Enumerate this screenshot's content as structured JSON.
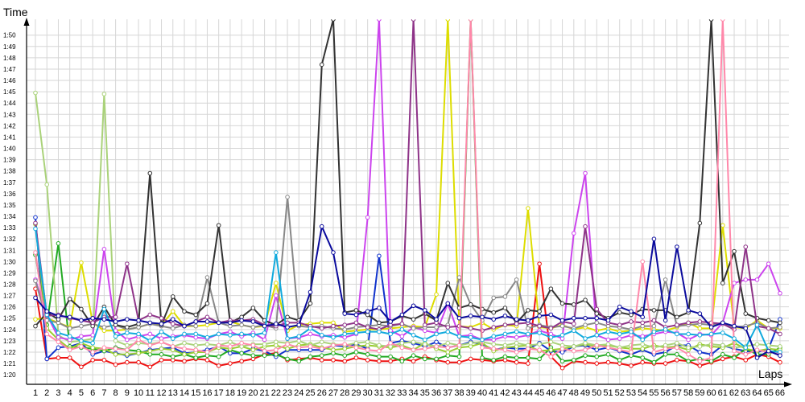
{
  "chart_data": {
    "type": "line",
    "xlabel": "Laps",
    "ylabel": "Time",
    "grid": true,
    "legend": "none",
    "x_ticks": [
      "1",
      "2",
      "3",
      "4",
      "5",
      "6",
      "7",
      "8",
      "9",
      "10",
      "11",
      "12",
      "13",
      "14",
      "15",
      "16",
      "17",
      "18",
      "19",
      "20",
      "21",
      "22",
      "23",
      "24",
      "25",
      "26",
      "27",
      "28",
      "29",
      "30",
      "31",
      "32",
      "33",
      "34",
      "35",
      "36",
      "37",
      "38",
      "39",
      "40",
      "41",
      "42",
      "43",
      "44",
      "45",
      "46",
      "47",
      "48",
      "49",
      "50",
      "51",
      "52",
      "53",
      "54",
      "55",
      "56",
      "57",
      "58",
      "59",
      "60",
      "61",
      "62",
      "63",
      "64",
      "65",
      "66"
    ],
    "y_ticks": [
      "1:20",
      "1:21",
      "1:22",
      "1:23",
      "1:24",
      "1:25",
      "1:26",
      "1:27",
      "1:28",
      "1:29",
      "1:30",
      "1:31",
      "1:32",
      "1:33",
      "1:34",
      "1:35",
      "1:36",
      "1:37",
      "1:38",
      "1:39",
      "1:40",
      "1:41",
      "1:42",
      "1:43",
      "1:44",
      "1:45",
      "1:46",
      "1:47",
      "1:48",
      "1:49",
      "1:50"
    ],
    "ylim": [
      79.3,
      111.4
    ],
    "xlim": [
      1,
      66
    ],
    "series": [
      {
        "color": "#ee1111",
        "values": [
          87.6,
          81.4,
          81.5,
          81.5,
          80.7,
          81.3,
          81.3,
          80.9,
          81.1,
          81.1,
          80.7,
          81.3,
          81.3,
          81.2,
          81.4,
          81.3,
          80.8,
          81.0,
          81.2,
          81.4,
          81.8,
          81.9,
          81.3,
          81.4,
          81.5,
          81.3,
          81.3,
          81.2,
          81.5,
          81.3,
          81.2,
          81.2,
          81.4,
          81.2,
          81.6,
          81.3,
          81.1,
          81.1,
          81.4,
          81.3,
          81.2,
          81.3,
          81.1,
          81.0,
          89.8,
          81.6,
          80.6,
          81.2,
          81.1,
          81.0,
          81.1,
          81.0,
          80.8,
          81.1,
          81.0,
          81.0,
          81.3,
          81.2,
          80.8,
          81.1,
          81.4,
          81.6,
          81.3,
          81.8,
          81.6,
          81.1
        ]
      },
      {
        "color": "#1133cc",
        "values": [
          93.9,
          81.4,
          82.4,
          82.5,
          82.8,
          81.8,
          82.1,
          81.9,
          81.7,
          81.9,
          82.2,
          82.3,
          82.4,
          81.9,
          82.0,
          82.2,
          82.5,
          81.9,
          81.9,
          82.3,
          82.1,
          81.6,
          82.2,
          82.2,
          82.2,
          82.2,
          82.6,
          82.5,
          82.7,
          82.3,
          90.5,
          82.8,
          83.0,
          82.8,
          82.5,
          82.9,
          82.4,
          82.6,
          82.9,
          82.7,
          82.2,
          82.4,
          82.3,
          82.3,
          82.8,
          82.1,
          82.0,
          82.5,
          82.6,
          82.2,
          82.4,
          82.1,
          81.8,
          82.2,
          81.8,
          82.0,
          82.6,
          82.6,
          82.0,
          81.8,
          82.6,
          82.3,
          82.1,
          82.0,
          82.3,
          84.9
        ]
      },
      {
        "color": "#22aa22",
        "values": [
          90.6,
          84.4,
          91.6,
          82.5,
          82.4,
          82.3,
          82.1,
          82.4,
          82.2,
          82.1,
          81.8,
          81.8,
          81.6,
          81.8,
          81.5,
          81.7,
          81.6,
          82.2,
          81.9,
          81.7,
          81.7,
          81.8,
          81.4,
          81.2,
          81.6,
          81.7,
          81.9,
          81.7,
          82.0,
          81.8,
          81.6,
          81.6,
          81.2,
          81.7,
          81.4,
          81.4,
          81.7,
          81.6,
          111.4,
          81.5,
          81.3,
          81.6,
          81.5,
          81.5,
          81.4,
          82.4,
          81.2,
          81.3,
          81.7,
          81.6,
          81.8,
          81.3,
          81.7,
          81.5,
          81.1,
          81.8,
          81.8,
          81.2,
          81.4,
          81.2,
          81.8,
          81.5,
          82.3,
          81.8,
          81.8,
          82.4
        ]
      },
      {
        "color": "#9acd32",
        "values": [
          93.3,
          84.1,
          83.1,
          82.3,
          82.8,
          82.4,
          82.3,
          81.8,
          81.8,
          81.9,
          82.1,
          82.3,
          82.2,
          81.8,
          82.0,
          82.0,
          82.4,
          82.3,
          82.5,
          82.2,
          82.5,
          82.6,
          82.3,
          82.6,
          82.7,
          82.4,
          82.2,
          82.3,
          82.5,
          82.6,
          82.5,
          82.4,
          82.6,
          82.2,
          82.8,
          82.3,
          82.0,
          82.4,
          82.5,
          82.8,
          82.1,
          82.4,
          82.5,
          82.6,
          82.1,
          82.2,
          82.3,
          82.5,
          82.7,
          82.5,
          82.6,
          82.4,
          82.3,
          82.3,
          82.6,
          82.4,
          82.5,
          82.2,
          82.7,
          82.5,
          82.4,
          82.8,
          82.3,
          82.1,
          82.3,
          82.2
        ]
      },
      {
        "color": "#aad27a",
        "values": [
          104.9,
          96.8,
          83.5,
          82.9,
          83.0,
          83.2,
          104.8,
          83.0,
          82.6,
          82.8,
          82.7,
          82.9,
          82.5,
          82.8,
          82.6,
          82.7,
          82.6,
          82.9,
          82.5,
          82.7,
          82.7,
          82.9,
          82.8,
          83.0,
          82.6,
          82.9,
          82.7,
          82.6,
          82.8,
          82.9,
          82.6,
          82.5,
          82.8,
          82.9,
          82.7,
          82.5,
          82.8,
          82.6,
          82.8,
          82.9,
          82.7,
          82.6,
          82.8,
          82.6,
          82.7,
          82.9,
          82.6,
          82.5,
          82.8,
          82.6,
          82.7,
          82.4,
          82.6,
          82.7,
          82.4,
          82.6,
          82.8,
          82.4,
          82.5,
          82.7,
          82.6,
          82.4,
          82.5,
          82.7,
          82.6,
          82.5
        ]
      },
      {
        "color": "#dddd00",
        "values": [
          84.9,
          85.0,
          84.6,
          84.2,
          89.9,
          84.6,
          83.9,
          83.9,
          84.0,
          84.2,
          84.5,
          84.4,
          85.6,
          84.3,
          84.3,
          84.4,
          84.6,
          84.7,
          84.4,
          84.2,
          84.3,
          88.1,
          83.9,
          84.4,
          84.5,
          84.6,
          84.6,
          83.8,
          83.9,
          84.0,
          84.0,
          84.1,
          84.2,
          84.3,
          84.2,
          87.1,
          111.4,
          84.3,
          84.2,
          84.6,
          84.0,
          84.4,
          84.3,
          94.7,
          84.2,
          84.1,
          84.4,
          84.0,
          84.2,
          83.9,
          84.1,
          83.8,
          83.9,
          84.1,
          84.0,
          83.9,
          84.2,
          84.6,
          84.1,
          84.1,
          93.2,
          84.2,
          84.1,
          84.8,
          84.1,
          84.1
        ]
      },
      {
        "color": "#cc44ee",
        "values": [
          88.4,
          85.3,
          83.3,
          83.1,
          83.4,
          83.5,
          91.1,
          83.9,
          83.1,
          83.4,
          83.6,
          83.2,
          83.4,
          83.5,
          83.3,
          83.2,
          83.6,
          83.8,
          83.4,
          83.7,
          83.1,
          87.0,
          83.2,
          83.3,
          83.6,
          83.4,
          83.5,
          83.3,
          83.6,
          93.9,
          111.4,
          83.9,
          83.4,
          84.2,
          83.9,
          83.7,
          86.3,
          83.4,
          83.5,
          83.1,
          83.1,
          83.4,
          83.3,
          83.5,
          83.9,
          83.6,
          83.2,
          92.5,
          97.8,
          83.5,
          83.1,
          83.2,
          83.5,
          83.4,
          83.6,
          83.8,
          83.7,
          83.1,
          83.6,
          83.5,
          84.6,
          88.1,
          88.4,
          88.4,
          89.8,
          87.2
        ]
      },
      {
        "color": "#888888",
        "values": [
          88.3,
          84.8,
          84.6,
          84.1,
          84.3,
          84.5,
          84.2,
          84.4,
          84.0,
          84.2,
          84.5,
          84.3,
          84.1,
          84.4,
          84.3,
          88.6,
          84.6,
          84.3,
          84.4,
          84.2,
          84.4,
          84.1,
          95.7,
          84.3,
          84.2,
          84.3,
          84.1,
          84.0,
          84.2,
          84.3,
          84.4,
          84.3,
          84.5,
          84.1,
          84.2,
          84.2,
          84.4,
          88.6,
          86.2,
          84.8,
          86.8,
          86.9,
          88.4,
          84.1,
          84.4,
          84.2,
          84.3,
          84.1,
          84.4,
          84.6,
          84.3,
          84.2,
          84.0,
          84.3,
          84.3,
          88.4,
          84.3,
          84.4,
          84.5,
          84.4,
          84.6,
          84.2,
          84.3,
          84.6,
          84.1,
          84.2
        ]
      },
      {
        "color": "#333333",
        "values": [
          84.3,
          85.5,
          84.9,
          86.7,
          85.8,
          84.3,
          86.0,
          84.4,
          84.2,
          84.5,
          97.8,
          84.4,
          86.9,
          85.6,
          85.3,
          86.3,
          93.2,
          84.6,
          85.1,
          85.9,
          84.8,
          84.4,
          85.1,
          84.8,
          86.3,
          107.4,
          111.4,
          85.5,
          85.7,
          85.3,
          84.6,
          84.7,
          85.2,
          84.9,
          85.4,
          84.8,
          88.1,
          85.9,
          86.2,
          85.8,
          85.5,
          85.9,
          84.6,
          85.7,
          85.6,
          87.6,
          86.3,
          86.2,
          86.6,
          85.4,
          85.0,
          85.5,
          85.3,
          85.8,
          85.7,
          85.7,
          85.1,
          85.5,
          93.4,
          111.4,
          88.1,
          90.9,
          85.4,
          85.0,
          84.8,
          84.6
        ]
      },
      {
        "color": "#8e3388",
        "values": [
          93.4,
          85.2,
          85.3,
          85.0,
          84.8,
          84.6,
          85.1,
          85.1,
          89.8,
          84.8,
          85.3,
          85.0,
          84.5,
          84.3,
          84.7,
          85.1,
          84.6,
          84.8,
          84.8,
          84.9,
          84.4,
          84.3,
          84.6,
          84.6,
          84.3,
          84.1,
          84.3,
          84.4,
          84.6,
          84.2,
          84.0,
          84.4,
          84.5,
          111.4,
          84.4,
          84.6,
          84.2,
          84.3,
          84.1,
          83.9,
          84.2,
          84.4,
          84.5,
          84.6,
          84.3,
          84.1,
          84.7,
          84.5,
          93.1,
          85.8,
          84.6,
          84.4,
          84.7,
          84.6,
          84.8,
          84.2,
          84.4,
          84.6,
          84.7,
          84.6,
          84.5,
          84.0,
          91.3,
          84.3,
          84.1,
          83.6
        ]
      },
      {
        "color": "#ff88aa",
        "values": [
          90.8,
          83.6,
          82.9,
          82.2,
          82.5,
          82.0,
          82.4,
          82.3,
          82.2,
          83.1,
          82.6,
          82.9,
          82.5,
          82.3,
          82.2,
          82.0,
          82.6,
          82.5,
          82.8,
          82.6,
          82.1,
          82.2,
          82.7,
          82.4,
          82.5,
          82.3,
          82.6,
          82.7,
          82.4,
          82.2,
          82.1,
          82.8,
          82.4,
          82.2,
          82.3,
          82.5,
          82.4,
          82.6,
          111.4,
          82.4,
          82.3,
          82.2,
          82.0,
          82.3,
          82.2,
          81.6,
          82.3,
          82.1,
          82.2,
          82.6,
          82.4,
          82.2,
          82.0,
          90.0,
          82.0,
          82.3,
          82.4,
          81.8,
          81.2,
          81.5,
          111.4,
          82.1,
          81.8,
          82.2,
          82.0,
          81.9
        ]
      },
      {
        "color": "#11aadd",
        "values": [
          92.9,
          85.3,
          83.7,
          83.4,
          83.0,
          82.8,
          85.8,
          83.4,
          83.7,
          83.6,
          83.0,
          83.8,
          83.2,
          83.6,
          83.6,
          83.3,
          83.6,
          83.5,
          83.6,
          83.5,
          83.7,
          90.8,
          83.2,
          83.4,
          84.1,
          83.5,
          83.3,
          83.6,
          83.7,
          83.8,
          83.8,
          83.6,
          84.0,
          83.5,
          83.1,
          83.6,
          83.8,
          83.4,
          83.3,
          83.1,
          83.4,
          83.6,
          83.8,
          83.6,
          83.7,
          83.3,
          83.5,
          83.9,
          83.2,
          83.5,
          83.8,
          83.6,
          83.8,
          83.1,
          83.8,
          84.0,
          83.6,
          83.6,
          83.5,
          83.6,
          83.7,
          83.2,
          82.4,
          84.4,
          82.1,
          82.0
        ]
      },
      {
        "color": "#0a0a9c",
        "values": [
          86.8,
          85.6,
          85.2,
          85.1,
          84.8,
          85.0,
          84.9,
          84.7,
          84.9,
          84.8,
          84.6,
          84.5,
          84.9,
          84.3,
          84.7,
          84.7,
          84.6,
          84.6,
          84.8,
          84.7,
          84.3,
          84.5,
          84.2,
          84.4,
          87.3,
          93.1,
          90.8,
          85.4,
          85.3,
          85.6,
          85.9,
          84.7,
          85.3,
          86.1,
          85.7,
          84.9,
          86.3,
          85.0,
          85.2,
          85.1,
          84.9,
          85.2,
          84.9,
          84.8,
          85.2,
          85.3,
          84.8,
          85.0,
          85.0,
          85.0,
          84.8,
          86.0,
          85.6,
          85.1,
          92.0,
          84.8,
          91.3,
          85.7,
          85.4,
          84.2,
          84.6,
          84.3,
          84.1,
          81.5,
          82.1,
          81.7
        ]
      }
    ]
  }
}
